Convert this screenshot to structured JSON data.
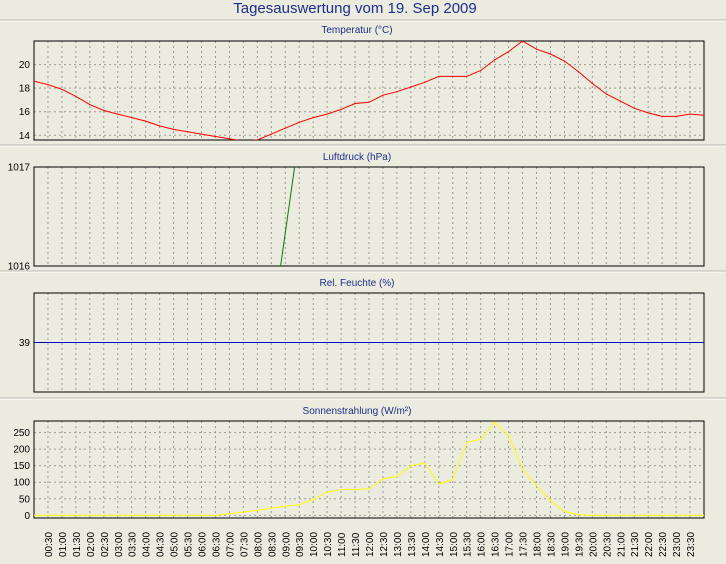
{
  "page_title": "Tagesauswertung vom 19. Sep 2009",
  "colors": {
    "background": "#ecebdf",
    "title": "#1c2e8c",
    "grid": "#9a9a9a",
    "temperature": "#ff0000",
    "pressure": "#008000",
    "humidity": "#0000c0",
    "solar": "#ffff00"
  },
  "x_ticks": [
    "00:30",
    "01:00",
    "01:30",
    "02:00",
    "02:30",
    "03:00",
    "03:30",
    "04:00",
    "04:30",
    "05:00",
    "05:30",
    "06:00",
    "06:30",
    "07:00",
    "07:30",
    "08:00",
    "08:30",
    "09:00",
    "09:30",
    "10:00",
    "10:30",
    "11:00",
    "11:30",
    "12:00",
    "12:30",
    "13:00",
    "13:30",
    "14:00",
    "14:30",
    "15:00",
    "15:30",
    "16:00",
    "16:30",
    "17:00",
    "17:30",
    "18:00",
    "18:30",
    "19:00",
    "19:30",
    "20:00",
    "20:30",
    "21:00",
    "21:30",
    "22:00",
    "22:30",
    "23:00",
    "23:30"
  ],
  "chart_data": [
    {
      "type": "line",
      "title": "Temperatur (°C)",
      "ylim": [
        13.6,
        22.0
      ],
      "y_ticks": [
        14,
        16,
        18,
        20
      ],
      "series": [
        {
          "color": "#ff0000",
          "x": [
            "00:00",
            "00:30",
            "01:00",
            "01:30",
            "02:00",
            "02:30",
            "03:00",
            "03:30",
            "04:00",
            "04:30",
            "05:00",
            "05:30",
            "06:00",
            "06:30",
            "07:00",
            "07:30",
            "08:00",
            "08:30",
            "09:00",
            "09:30",
            "10:00",
            "10:30",
            "11:00",
            "11:30",
            "12:00",
            "12:30",
            "13:00",
            "13:30",
            "14:00",
            "14:30",
            "15:00",
            "15:30",
            "16:00",
            "16:30",
            "17:00",
            "17:30",
            "18:00",
            "18:30",
            "19:00",
            "19:30",
            "20:00",
            "20:30",
            "21:00",
            "21:30",
            "22:00",
            "22:30",
            "23:00",
            "23:30",
            "24:00"
          ],
          "values": [
            18.6,
            18.3,
            17.9,
            17.3,
            16.6,
            16.1,
            15.8,
            15.5,
            15.2,
            14.8,
            14.5,
            14.3,
            14.1,
            13.9,
            13.7,
            13.5,
            13.6,
            14.1,
            14.6,
            15.1,
            15.5,
            15.8,
            16.2,
            16.7,
            16.8,
            17.4,
            17.7,
            18.1,
            18.5,
            19.0,
            19.0,
            19.0,
            19.5,
            20.4,
            21.1,
            22.0,
            21.3,
            20.9,
            20.3,
            19.4,
            18.4,
            17.5,
            16.9,
            16.3,
            15.9,
            15.6,
            15.6,
            15.8,
            15.7
          ]
        }
      ]
    },
    {
      "type": "line",
      "title": "Luftdruck (hPa)",
      "ylim": [
        1016,
        1017
      ],
      "y_ticks": [
        1016,
        1017
      ],
      "series": [
        {
          "color": "#008000",
          "x": [
            "08:50",
            "09:20"
          ],
          "values": [
            1016.0,
            1017.0
          ]
        }
      ]
    },
    {
      "type": "line",
      "title": "Rel. Feuchte (%)",
      "ylim": [
        38,
        40
      ],
      "y_ticks": [
        39
      ],
      "series": [
        {
          "color": "#0000c0",
          "x": [
            "00:00",
            "24:00"
          ],
          "values": [
            39,
            39
          ]
        }
      ]
    },
    {
      "type": "line",
      "title": "Sonnenstrahlung (W/m²)",
      "ylim": [
        -8,
        285
      ],
      "y_ticks": [
        0,
        50,
        100,
        150,
        200,
        250
      ],
      "series": [
        {
          "color": "#ffff00",
          "x": [
            "00:00",
            "01:00",
            "02:00",
            "03:00",
            "04:00",
            "05:00",
            "06:00",
            "06:30",
            "07:00",
            "07:30",
            "08:00",
            "08:30",
            "09:00",
            "09:30",
            "10:00",
            "10:30",
            "11:00",
            "11:30",
            "12:00",
            "12:30",
            "13:00",
            "13:30",
            "14:00",
            "14:30",
            "15:00",
            "15:30",
            "16:00",
            "16:30",
            "17:00",
            "17:30",
            "18:00",
            "18:30",
            "19:00",
            "19:30",
            "20:00",
            "21:00",
            "22:00",
            "23:00",
            "24:00"
          ],
          "values": [
            0,
            0,
            0,
            0,
            0,
            0,
            0,
            0,
            5,
            10,
            15,
            22,
            28,
            32,
            48,
            70,
            78,
            78,
            80,
            110,
            118,
            150,
            158,
            95,
            108,
            220,
            230,
            282,
            240,
            140,
            90,
            45,
            12,
            2,
            0,
            0,
            0,
            0,
            0
          ]
        }
      ]
    }
  ]
}
